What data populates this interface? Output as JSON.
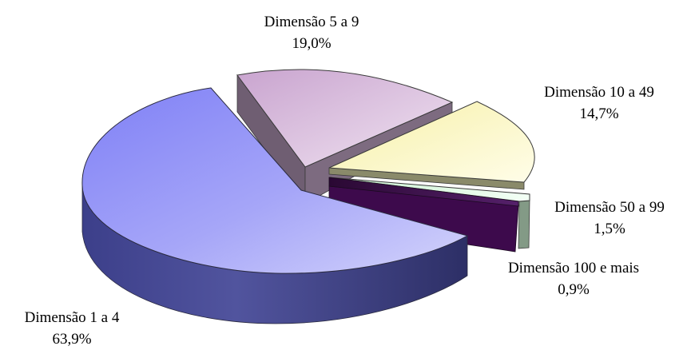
{
  "chart_data": {
    "type": "pie",
    "style": "3d-exploded",
    "start_angle_deg": 90,
    "direction": "clockwise",
    "slices": [
      {
        "name": "Dimensão 5 a 9",
        "value": 19.0,
        "label": "19,0%",
        "color": "#e0c8e4"
      },
      {
        "name": "Dimensão 10 a 49",
        "value": 14.7,
        "label": "14,7%",
        "color": "#fbf7c8"
      },
      {
        "name": "Dimensão 50 a 99",
        "value": 1.5,
        "label": "1,5%",
        "color": "#e4fbe8"
      },
      {
        "name": "Dimensão 100 e mais",
        "value": 0.9,
        "label": "0,9%",
        "color": "#3b0f48"
      },
      {
        "name": "Dimensão 1 a 4",
        "value": 63.9,
        "label": "63,9%",
        "color": "#a9a9f4"
      }
    ],
    "legend": "none",
    "title": ""
  }
}
